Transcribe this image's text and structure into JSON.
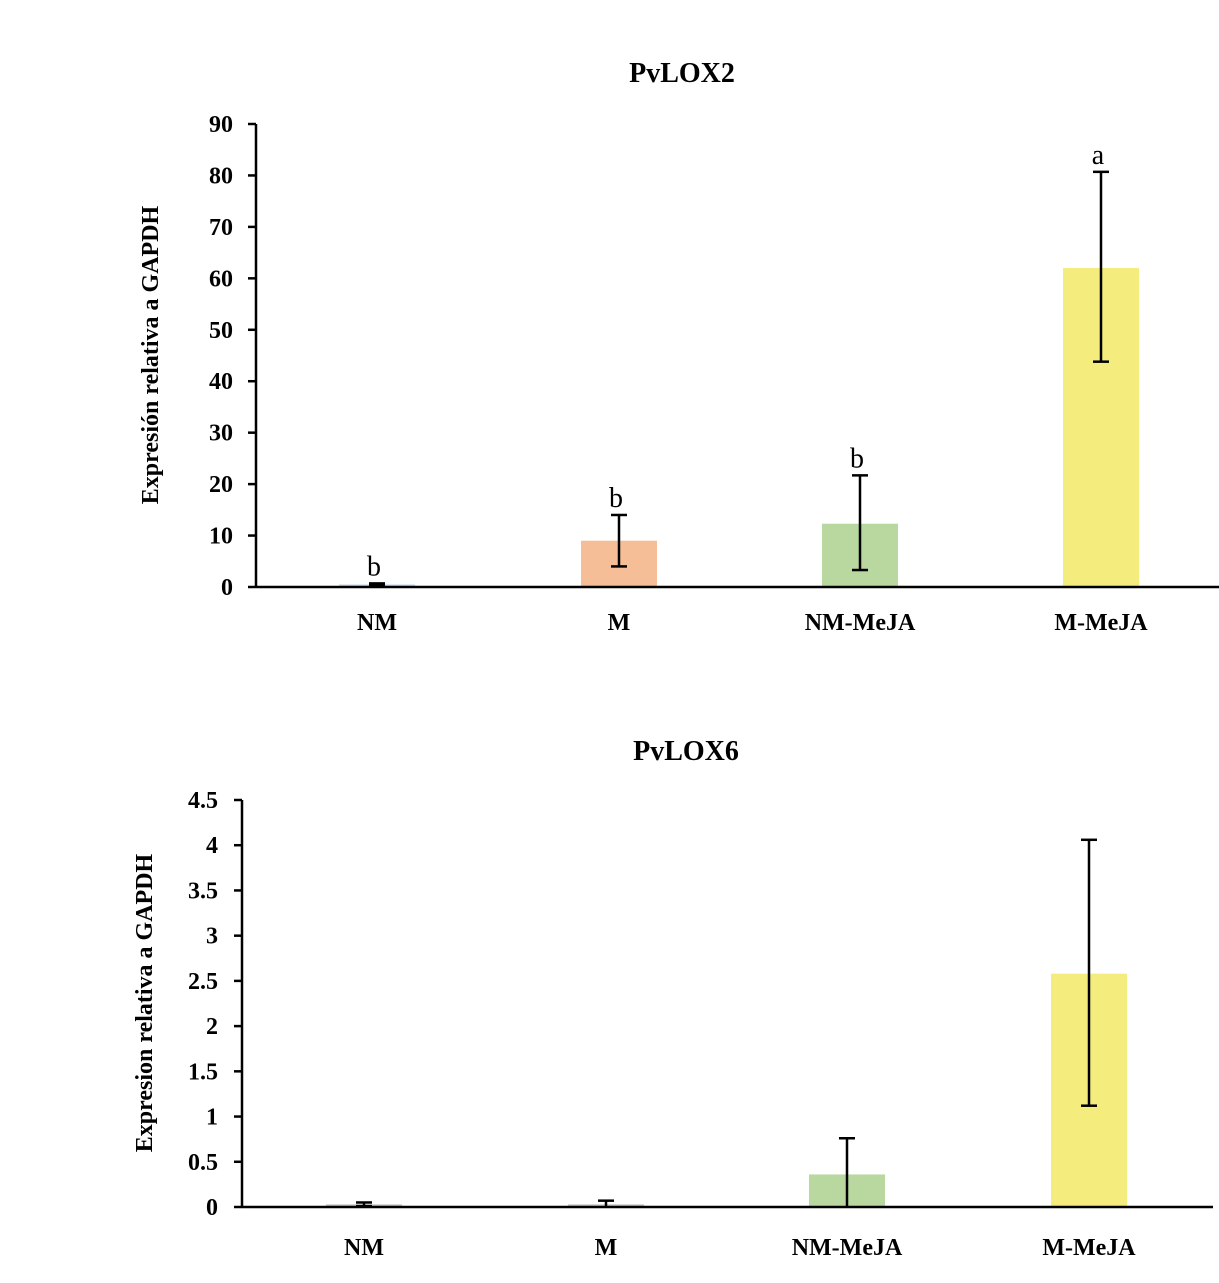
{
  "chart_data": [
    {
      "type": "bar",
      "title": "PvLOX2",
      "ylabel": "Expresión relativa a GAPDH",
      "xlabel": "",
      "categories": [
        "NM",
        "M",
        "NM-MeJA",
        "M-MeJA"
      ],
      "values": [
        0.5,
        9,
        12.3,
        62
      ],
      "error_low": [
        0.3,
        4,
        3.3,
        43.8
      ],
      "error_high": [
        0.7,
        14,
        21.7,
        80.7
      ],
      "significance": [
        "b",
        "b",
        "b",
        "a"
      ],
      "colors": [
        "#C5D9F1",
        "#F5BE96",
        "#B9D89F",
        "#F5EC7E"
      ],
      "ylim": [
        0,
        90
      ],
      "yticks": [
        0,
        10,
        20,
        30,
        40,
        50,
        60,
        70,
        80,
        90
      ],
      "ytick_labels": [
        "0",
        "10",
        "20",
        "30",
        "40",
        "50",
        "60",
        "70",
        "80",
        "90"
      ]
    },
    {
      "type": "bar",
      "title": "PvLOX6",
      "ylabel": "Expresion relativa a GAPDH",
      "xlabel": "",
      "categories": [
        "NM",
        "M",
        "NM-MeJA",
        "M-MeJA"
      ],
      "values": [
        0.03,
        0.03,
        0.36,
        2.58
      ],
      "error_low": [
        0.01,
        -0.01,
        -0.04,
        1.12
      ],
      "error_high": [
        0.05,
        0.07,
        0.76,
        4.06
      ],
      "significance": [
        "",
        "",
        "",
        ""
      ],
      "colors": [
        "#C8C8C8",
        "#C8C8C8",
        "#B9D89F",
        "#F5EC7E"
      ],
      "ylim": [
        0,
        4.5
      ],
      "yticks": [
        0,
        0.5,
        1,
        1.5,
        2,
        2.5,
        3,
        3.5,
        4,
        4.5
      ],
      "ytick_labels": [
        "0",
        "0.5",
        "1",
        "1.5",
        "2",
        "2.5",
        "3",
        "3.5",
        "4",
        "4.5"
      ]
    }
  ]
}
